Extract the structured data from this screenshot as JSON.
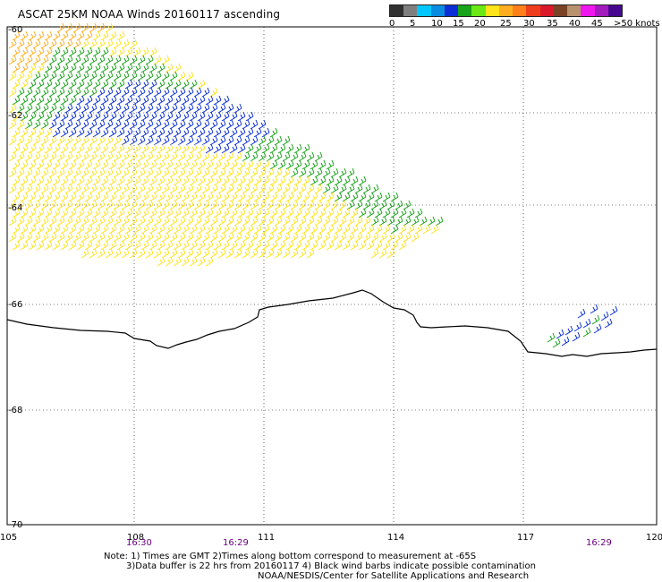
{
  "title": "ASCAT 25KM NOAA Winds 20160117 ascending",
  "legend": {
    "colors": [
      "#303030",
      "#7f7f7f",
      "#00c8ff",
      "#0a8ce0",
      "#0b2fd6",
      "#19a419",
      "#6ce814",
      "#ffe41a",
      "#ffae1f",
      "#ff7f1a",
      "#ee3e1d",
      "#da1a2a",
      "#7a4227",
      "#b8916d",
      "#ee18ee",
      "#a41bbd",
      "#46088e"
    ],
    "labels": [
      "0",
      "5",
      "10",
      "15",
      "20",
      "25",
      "30",
      "35",
      "40",
      "45",
      ">50 knots"
    ]
  },
  "axes": {
    "lat_labels": [
      "-60",
      "-62",
      "-64",
      "-66",
      "-68",
      "-70"
    ],
    "lon_labels": [
      "105",
      "108",
      "111",
      "114",
      "117",
      "120"
    ]
  },
  "times": [
    "16:30",
    "16:29",
    "16:29"
  ],
  "notes": [
    "Note: 1) Times are GMT 2)Times along bottom correspond to measurement at -65S",
    "3)Data buffer is 22 hrs from 20160117 4) Black wind barbs indicate possible contamination",
    "NOAA/NESDIS/Center for Satellite Applications and Research"
  ],
  "wind_regions": [
    {
      "name": "swath-main",
      "color": "#ffe41a"
    },
    {
      "name": "swath-green",
      "color": "#19a419"
    },
    {
      "name": "swath-blue",
      "color": "#0b2fd6"
    },
    {
      "name": "swath-orange",
      "color": "#ffae1f"
    },
    {
      "name": "coastal-cluster",
      "color": "#0b2fd6"
    }
  ]
}
